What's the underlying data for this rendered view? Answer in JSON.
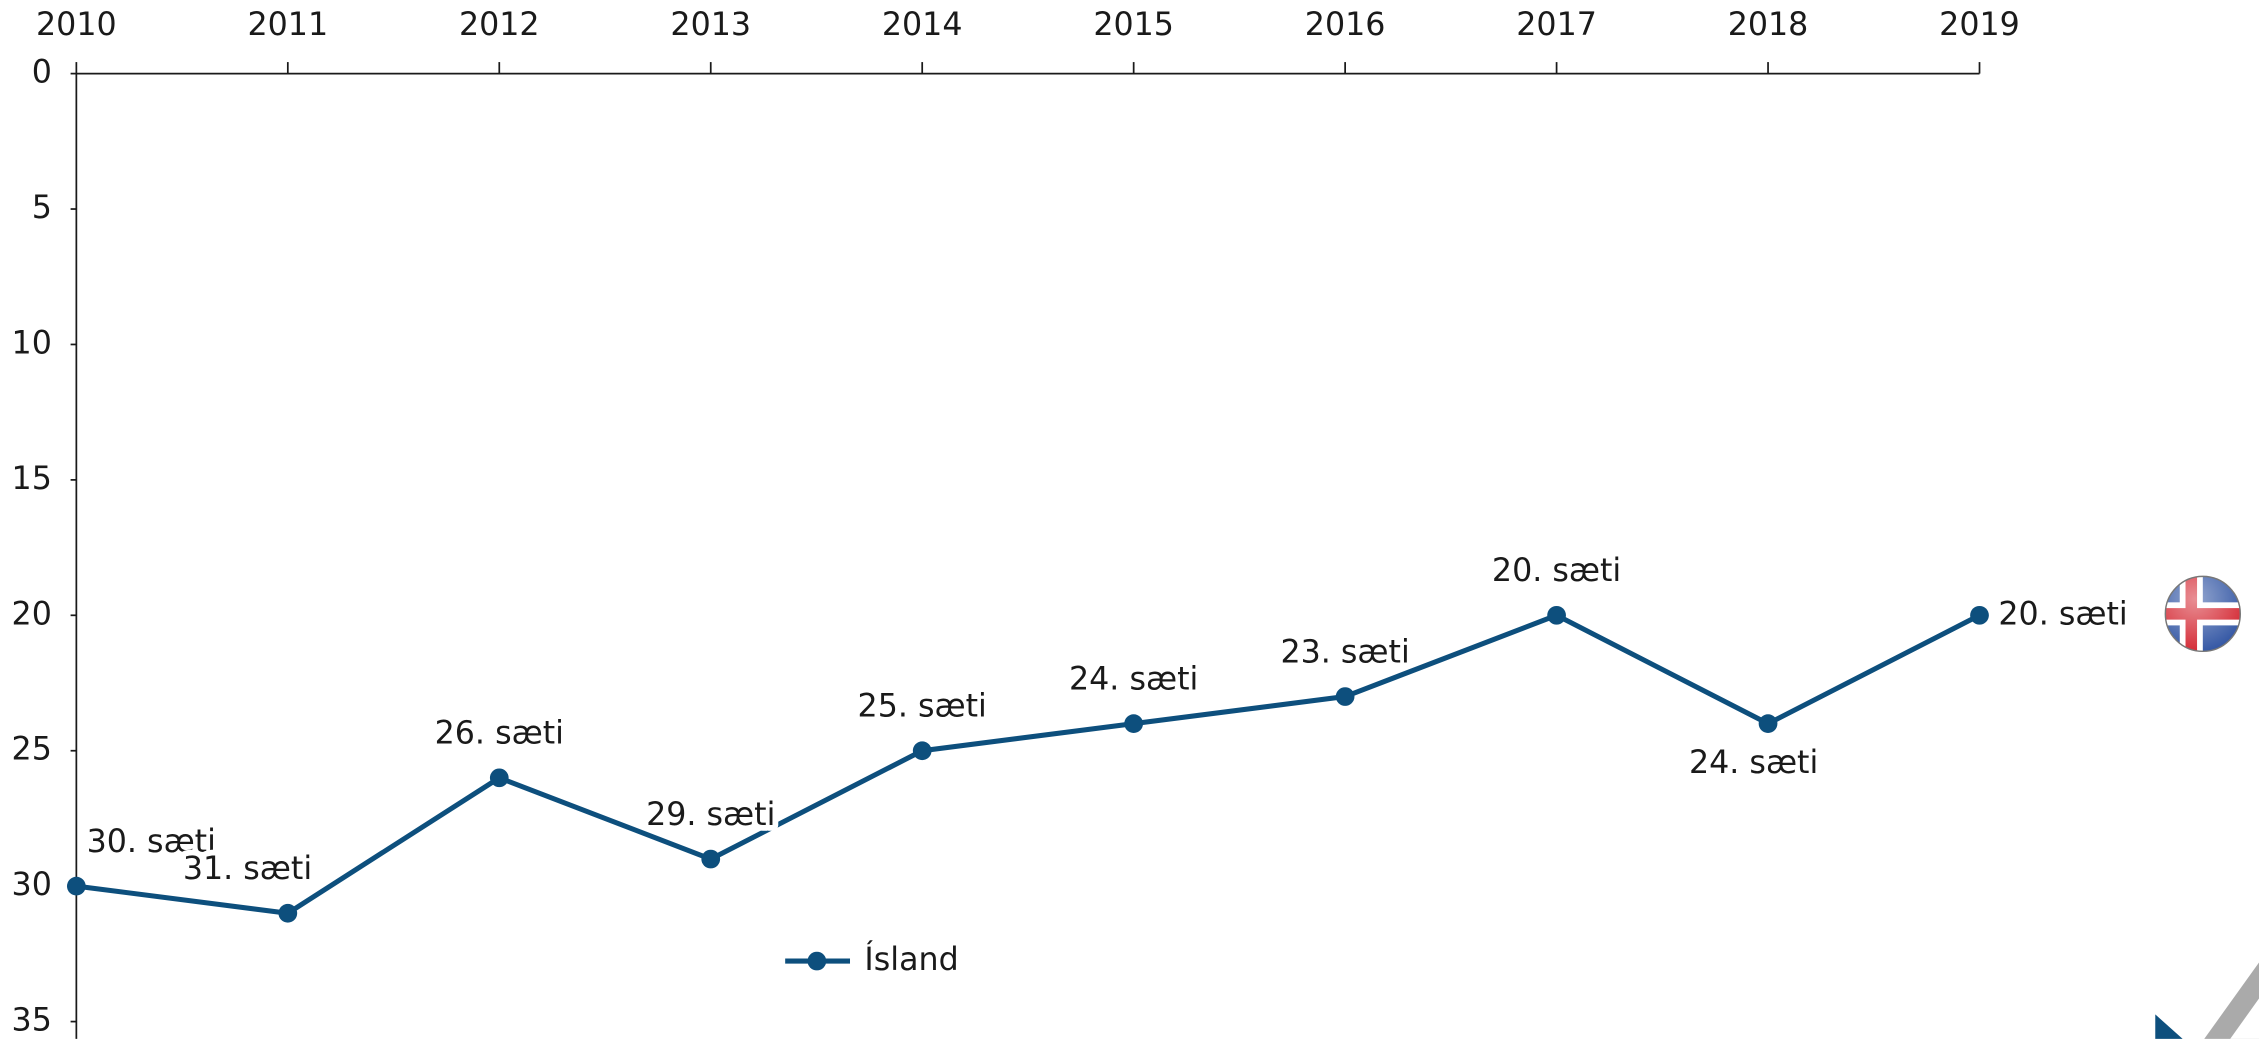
{
  "chart_data": {
    "type": "line",
    "x": [
      2010,
      2011,
      2012,
      2013,
      2014,
      2015,
      2016,
      2017,
      2018,
      2019
    ],
    "xlim": [
      2010,
      2019
    ],
    "xticks": [
      2010,
      2011,
      2012,
      2013,
      2014,
      2015,
      2016,
      2017,
      2018,
      2019
    ],
    "ylim": [
      0,
      35
    ],
    "yticks": [
      0,
      5,
      10,
      15,
      20,
      25,
      30,
      35
    ],
    "y_inverted": true,
    "series": [
      {
        "name": "Ísland",
        "color": "#0d4f7d",
        "values": [
          30,
          31,
          26,
          29,
          25,
          24,
          23,
          20,
          24,
          20
        ],
        "value_labels": [
          "30. sæti",
          "31. sæti",
          "26. sæti",
          "29. sæti",
          "25. sæti",
          "24. sæti",
          "23. sæti",
          "20. sæti",
          "24. sæti",
          "20. sæti"
        ]
      }
    ]
  }
}
